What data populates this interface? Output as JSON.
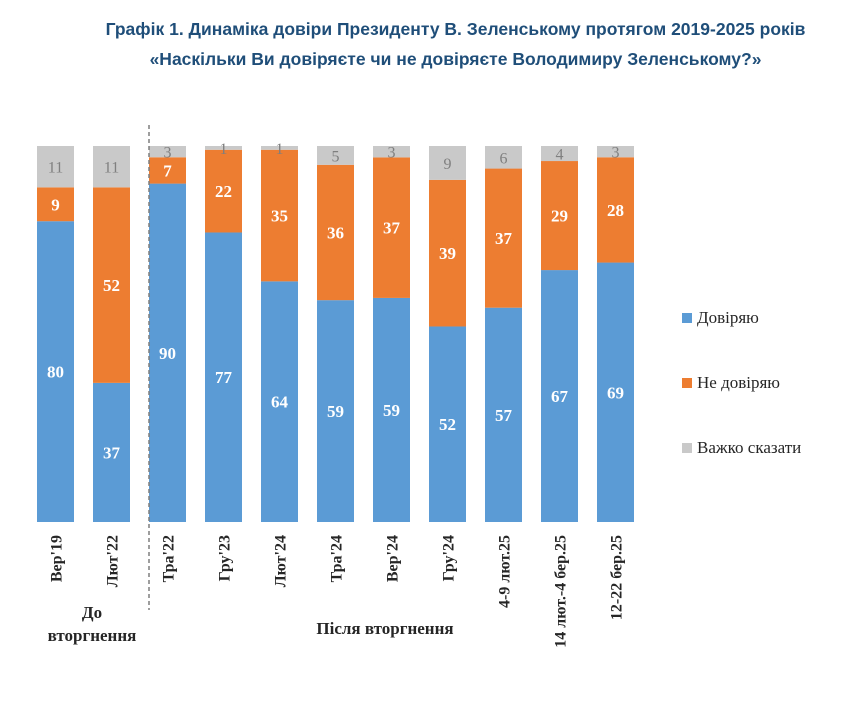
{
  "title": {
    "line1": "Графік 1. Динаміка довіри Президенту В. Зеленському протягом 2019-2025 років",
    "line2": "«Наскільки Ви довіряєте чи не довіряєте Володимиру Зеленському?»"
  },
  "groups": {
    "before": "До вторгнення",
    "after": "Після вторгнення"
  },
  "colors": {
    "trust": "#5b9bd5",
    "distrust": "#ed7d31",
    "hard": "#c9c9c9"
  },
  "chart_data": {
    "type": "bar",
    "stacked": true,
    "categories": [
      "Вер'19",
      "Лют'22",
      "Тра'22",
      "Гру'23",
      "Лют'24",
      "Тра'24",
      "Вер'24",
      "Гру'24",
      "4-9 лют.25",
      "14 лют.-4 бер.25",
      "12-22 бер.25"
    ],
    "series": [
      {
        "name": "Довіряю",
        "values": [
          80,
          37,
          90,
          77,
          64,
          59,
          59,
          52,
          57,
          67,
          69
        ]
      },
      {
        "name": "Не довіряю",
        "values": [
          9,
          52,
          7,
          22,
          35,
          36,
          37,
          39,
          37,
          29,
          28
        ]
      },
      {
        "name": "Важко сказати",
        "values": [
          11,
          11,
          3,
          1,
          1,
          5,
          3,
          9,
          6,
          4,
          3
        ]
      }
    ],
    "ylim": [
      0,
      100
    ],
    "legend_position": "right",
    "grid": false
  }
}
